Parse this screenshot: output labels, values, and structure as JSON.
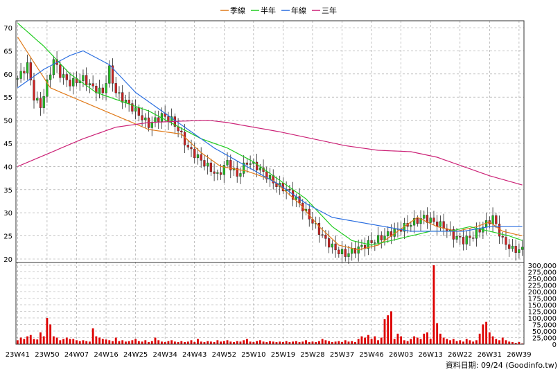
{
  "chart_data": {
    "type": "candlestick",
    "legend": [
      {
        "name": "季線",
        "color": "#e07a1a"
      },
      {
        "name": "半年",
        "color": "#22cc22"
      },
      {
        "name": "年線",
        "color": "#2a6ee0"
      },
      {
        "name": "三年",
        "color": "#cc2277"
      }
    ],
    "price_axis": {
      "min": 20,
      "max": 70,
      "ticks": [
        20,
        25,
        30,
        35,
        40,
        45,
        50,
        55,
        60,
        65,
        70
      ]
    },
    "volume_axis": {
      "min": 0,
      "max": 300000,
      "ticks": [
        0,
        25000,
        50000,
        75000,
        100000,
        125000,
        150000,
        175000,
        200000,
        225000,
        250000,
        275000,
        300000
      ],
      "tick_labels": [
        "0",
        "25,000",
        "50,000",
        "75,000",
        "100,000",
        "125,000",
        "150,000",
        "175,000",
        "200,000",
        "225,000",
        "250,000",
        "275,000",
        "300,000"
      ]
    },
    "x_labels": [
      "23W41",
      "23W50",
      "24W07",
      "24W16",
      "24W25",
      "24W34",
      "24W43",
      "24W52",
      "25W10",
      "25W19",
      "25W28",
      "25W37",
      "25W46",
      "26W03",
      "26W13",
      "26W22",
      "26W31",
      "26W39"
    ],
    "weeks_per_label": 9,
    "num_weeks": 155,
    "close_anchors": [
      [
        0,
        59
      ],
      [
        3,
        62
      ],
      [
        5,
        55
      ],
      [
        7,
        53
      ],
      [
        9,
        58
      ],
      [
        11,
        63
      ],
      [
        13,
        60
      ],
      [
        16,
        58
      ],
      [
        20,
        59
      ],
      [
        23,
        57
      ],
      [
        26,
        56
      ],
      [
        28,
        61
      ],
      [
        30,
        56
      ],
      [
        33,
        54
      ],
      [
        36,
        52
      ],
      [
        40,
        49
      ],
      [
        44,
        51
      ],
      [
        47,
        50
      ],
      [
        49,
        48
      ],
      [
        52,
        44
      ],
      [
        55,
        42
      ],
      [
        58,
        40
      ],
      [
        61,
        38
      ],
      [
        64,
        41
      ],
      [
        67,
        38
      ],
      [
        70,
        41
      ],
      [
        73,
        40
      ],
      [
        76,
        38
      ],
      [
        79,
        36
      ],
      [
        82,
        35
      ],
      [
        85,
        33
      ],
      [
        88,
        30
      ],
      [
        91,
        27
      ],
      [
        94,
        24
      ],
      [
        97,
        22
      ],
      [
        100,
        21
      ],
      [
        103,
        22
      ],
      [
        106,
        23
      ],
      [
        109,
        24
      ],
      [
        112,
        25
      ],
      [
        115,
        26
      ],
      [
        118,
        27
      ],
      [
        121,
        28
      ],
      [
        124,
        29
      ],
      [
        127,
        28
      ],
      [
        130,
        27
      ],
      [
        133,
        25
      ],
      [
        136,
        24
      ],
      [
        139,
        25
      ],
      [
        142,
        27
      ],
      [
        145,
        29
      ],
      [
        148,
        24
      ],
      [
        151,
        22
      ],
      [
        154,
        22
      ]
    ],
    "ma_quarter": [
      [
        0,
        68
      ],
      [
        10,
        57
      ],
      [
        20,
        54
      ],
      [
        30,
        51
      ],
      [
        40,
        48
      ],
      [
        50,
        47
      ],
      [
        56,
        43
      ],
      [
        62,
        40
      ],
      [
        70,
        39
      ],
      [
        78,
        37
      ],
      [
        86,
        32
      ],
      [
        92,
        27
      ],
      [
        98,
        23
      ],
      [
        104,
        22
      ],
      [
        110,
        23
      ],
      [
        116,
        26
      ],
      [
        122,
        29
      ],
      [
        128,
        27
      ],
      [
        134,
        26
      ],
      [
        140,
        27
      ],
      [
        144,
        28
      ],
      [
        148,
        26
      ],
      [
        154,
        25
      ]
    ],
    "ma_half": [
      [
        0,
        71
      ],
      [
        8,
        66
      ],
      [
        16,
        60
      ],
      [
        24,
        56
      ],
      [
        32,
        54
      ],
      [
        40,
        52
      ],
      [
        48,
        49
      ],
      [
        56,
        46
      ],
      [
        64,
        44
      ],
      [
        72,
        41
      ],
      [
        80,
        37
      ],
      [
        88,
        33
      ],
      [
        96,
        27
      ],
      [
        102,
        24
      ],
      [
        108,
        23
      ],
      [
        114,
        24
      ],
      [
        120,
        25
      ],
      [
        126,
        26
      ],
      [
        132,
        26
      ],
      [
        138,
        27
      ],
      [
        144,
        26
      ],
      [
        150,
        25
      ],
      [
        154,
        24
      ]
    ],
    "ma_year": [
      [
        0,
        57
      ],
      [
        8,
        61
      ],
      [
        16,
        64
      ],
      [
        20,
        65
      ],
      [
        28,
        62
      ],
      [
        36,
        56
      ],
      [
        44,
        52
      ],
      [
        52,
        48
      ],
      [
        60,
        44
      ],
      [
        70,
        40
      ],
      [
        80,
        36
      ],
      [
        88,
        32
      ],
      [
        96,
        29
      ],
      [
        104,
        28
      ],
      [
        112,
        27
      ],
      [
        120,
        26
      ],
      [
        128,
        26
      ],
      [
        136,
        26
      ],
      [
        144,
        27
      ],
      [
        154,
        27
      ]
    ],
    "ma_3year": [
      [
        0,
        40
      ],
      [
        10,
        43
      ],
      [
        20,
        46
      ],
      [
        30,
        48.5
      ],
      [
        40,
        49.5
      ],
      [
        50,
        49.8
      ],
      [
        58,
        50
      ],
      [
        64,
        49.5
      ],
      [
        72,
        48.5
      ],
      [
        80,
        47.5
      ],
      [
        90,
        46
      ],
      [
        100,
        44.5
      ],
      [
        110,
        43.5
      ],
      [
        120,
        43.2
      ],
      [
        128,
        42
      ],
      [
        136,
        40
      ],
      [
        144,
        38
      ],
      [
        154,
        36
      ]
    ],
    "volume_anchors": [
      [
        0,
        15000
      ],
      [
        1,
        25000
      ],
      [
        2,
        20000
      ],
      [
        3,
        30000
      ],
      [
        4,
        35000
      ],
      [
        5,
        20000
      ],
      [
        6,
        18000
      ],
      [
        7,
        45000
      ],
      [
        8,
        30000
      ],
      [
        9,
        100000
      ],
      [
        10,
        75000
      ],
      [
        11,
        30000
      ],
      [
        12,
        25000
      ],
      [
        13,
        15000
      ],
      [
        14,
        20000
      ],
      [
        15,
        25000
      ],
      [
        16,
        20000
      ],
      [
        17,
        20000
      ],
      [
        18,
        15000
      ],
      [
        19,
        12000
      ],
      [
        20,
        15000
      ],
      [
        21,
        12000
      ],
      [
        22,
        10000
      ],
      [
        23,
        60000
      ],
      [
        24,
        30000
      ],
      [
        25,
        25000
      ],
      [
        26,
        20000
      ],
      [
        27,
        18000
      ],
      [
        28,
        15000
      ],
      [
        29,
        12000
      ],
      [
        30,
        25000
      ],
      [
        31,
        12000
      ],
      [
        32,
        15000
      ],
      [
        33,
        10000
      ],
      [
        34,
        12000
      ],
      [
        35,
        15000
      ],
      [
        36,
        20000
      ],
      [
        37,
        12000
      ],
      [
        38,
        10000
      ],
      [
        39,
        15000
      ],
      [
        40,
        8000
      ],
      [
        41,
        12000
      ],
      [
        42,
        25000
      ],
      [
        43,
        15000
      ],
      [
        44,
        10000
      ],
      [
        45,
        8000
      ],
      [
        46,
        12000
      ],
      [
        47,
        15000
      ],
      [
        48,
        10000
      ],
      [
        49,
        8000
      ],
      [
        50,
        12000
      ],
      [
        51,
        8000
      ],
      [
        52,
        10000
      ],
      [
        53,
        15000
      ],
      [
        54,
        8000
      ],
      [
        55,
        20000
      ],
      [
        56,
        10000
      ],
      [
        57,
        8000
      ],
      [
        58,
        12000
      ],
      [
        59,
        10000
      ],
      [
        60,
        8000
      ],
      [
        61,
        15000
      ],
      [
        62,
        10000
      ],
      [
        63,
        12000
      ],
      [
        64,
        15000
      ],
      [
        65,
        10000
      ],
      [
        66,
        8000
      ],
      [
        67,
        12000
      ],
      [
        68,
        10000
      ],
      [
        69,
        15000
      ],
      [
        70,
        20000
      ],
      [
        71,
        10000
      ],
      [
        72,
        8000
      ],
      [
        73,
        12000
      ],
      [
        74,
        15000
      ],
      [
        75,
        10000
      ],
      [
        76,
        8000
      ],
      [
        77,
        12000
      ],
      [
        78,
        10000
      ],
      [
        79,
        8000
      ],
      [
        80,
        10000
      ],
      [
        81,
        8000
      ],
      [
        82,
        12000
      ],
      [
        83,
        8000
      ],
      [
        84,
        10000
      ],
      [
        85,
        12000
      ],
      [
        86,
        8000
      ],
      [
        87,
        10000
      ],
      [
        88,
        15000
      ],
      [
        89,
        8000
      ],
      [
        90,
        10000
      ],
      [
        91,
        8000
      ],
      [
        92,
        12000
      ],
      [
        93,
        20000
      ],
      [
        94,
        15000
      ],
      [
        95,
        12000
      ],
      [
        96,
        8000
      ],
      [
        97,
        10000
      ],
      [
        98,
        12000
      ],
      [
        99,
        8000
      ],
      [
        100,
        15000
      ],
      [
        101,
        10000
      ],
      [
        102,
        12000
      ],
      [
        103,
        8000
      ],
      [
        104,
        20000
      ],
      [
        105,
        30000
      ],
      [
        106,
        25000
      ],
      [
        107,
        35000
      ],
      [
        108,
        20000
      ],
      [
        109,
        30000
      ],
      [
        110,
        15000
      ],
      [
        111,
        25000
      ],
      [
        112,
        95000
      ],
      [
        113,
        110000
      ],
      [
        114,
        125000
      ],
      [
        115,
        20000
      ],
      [
        116,
        40000
      ],
      [
        117,
        30000
      ],
      [
        118,
        15000
      ],
      [
        119,
        12000
      ],
      [
        120,
        20000
      ],
      [
        121,
        30000
      ],
      [
        122,
        25000
      ],
      [
        123,
        20000
      ],
      [
        124,
        40000
      ],
      [
        125,
        45000
      ],
      [
        126,
        20000
      ],
      [
        127,
        310000
      ],
      [
        128,
        80000
      ],
      [
        129,
        40000
      ],
      [
        130,
        25000
      ],
      [
        131,
        20000
      ],
      [
        132,
        15000
      ],
      [
        133,
        20000
      ],
      [
        134,
        12000
      ],
      [
        135,
        15000
      ],
      [
        136,
        10000
      ],
      [
        137,
        20000
      ],
      [
        138,
        15000
      ],
      [
        139,
        10000
      ],
      [
        140,
        15000
      ],
      [
        141,
        40000
      ],
      [
        142,
        75000
      ],
      [
        143,
        85000
      ],
      [
        144,
        45000
      ],
      [
        145,
        30000
      ],
      [
        146,
        20000
      ],
      [
        147,
        15000
      ],
      [
        148,
        25000
      ],
      [
        149,
        15000
      ],
      [
        150,
        10000
      ],
      [
        151,
        8000
      ],
      [
        152,
        5000
      ],
      [
        153,
        8000
      ],
      [
        154,
        3000
      ]
    ]
  },
  "footer": {
    "text": "資料日期: 09/24   (Goodinfo.tw)"
  },
  "colors": {
    "up": "#22bb22",
    "down": "#cc2222",
    "volume": "#dd0000",
    "grid": "#999999"
  }
}
